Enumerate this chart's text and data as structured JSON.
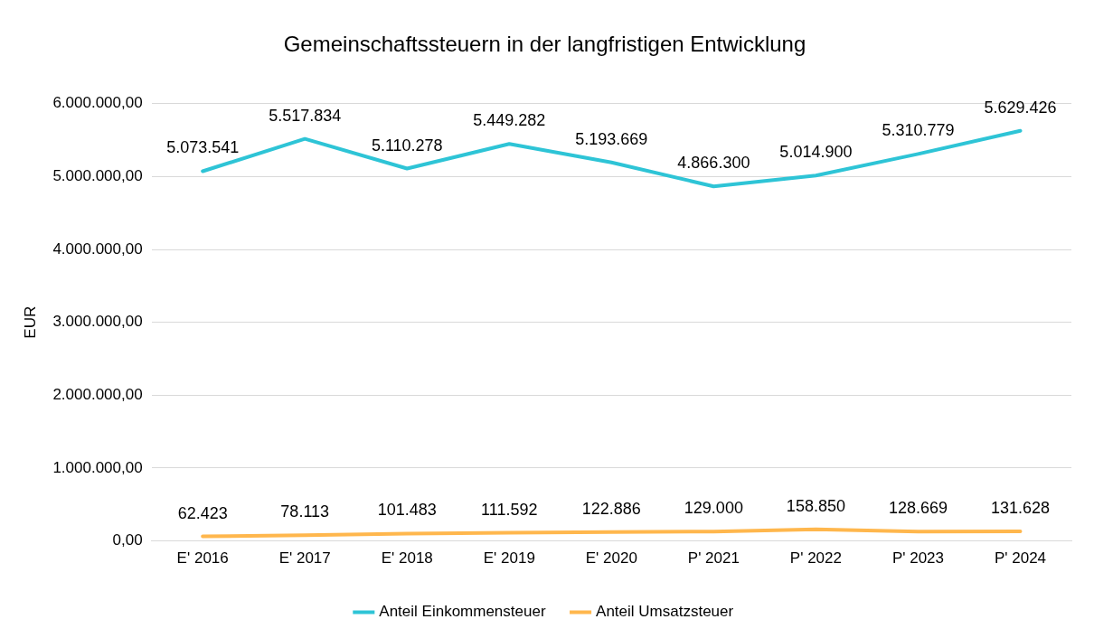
{
  "chart_data": {
    "type": "line",
    "title": "Gemeinschaftssteuern in der langfristigen Entwicklung",
    "ylabel": "EUR",
    "categories": [
      "E' 2016",
      "E' 2017",
      "E' 2018",
      "E' 2019",
      "E' 2020",
      "P' 2021",
      "P' 2022",
      "P' 2023",
      "P' 2024"
    ],
    "series": [
      {
        "name": "Anteil Einkommensteuer",
        "color": "#2ec4d6",
        "values": [
          5073541,
          5517834,
          5110278,
          5449282,
          5193669,
          4866300,
          5014900,
          5310779,
          5629426
        ],
        "value_labels": [
          "5.073.541",
          "5.517.834",
          "5.110.278",
          "5.449.282",
          "5.193.669",
          "4.866.300",
          "5.014.900",
          "5.310.779",
          "5.629.426"
        ]
      },
      {
        "name": "Anteil Umsatzsteuer",
        "color": "#ffb74d",
        "values": [
          62423,
          78113,
          101483,
          111592,
          122886,
          129000,
          158850,
          128669,
          131628
        ],
        "value_labels": [
          "62.423",
          "78.113",
          "101.483",
          "111.592",
          "122.886",
          "129.000",
          "158.850",
          "128.669",
          "131.628"
        ]
      }
    ],
    "ylim": [
      0,
      6000000
    ],
    "yticks": [
      {
        "value": 0,
        "label": "0,00"
      },
      {
        "value": 1000000,
        "label": "1.000.000,00"
      },
      {
        "value": 2000000,
        "label": "2.000.000,00"
      },
      {
        "value": 3000000,
        "label": "3.000.000,00"
      },
      {
        "value": 4000000,
        "label": "4.000.000,00"
      },
      {
        "value": 5000000,
        "label": "5.000.000,00"
      },
      {
        "value": 6000000,
        "label": "6.000.000,00"
      }
    ],
    "grid": "y",
    "legend": "bottom",
    "marker": "none",
    "line_style": "solid"
  }
}
